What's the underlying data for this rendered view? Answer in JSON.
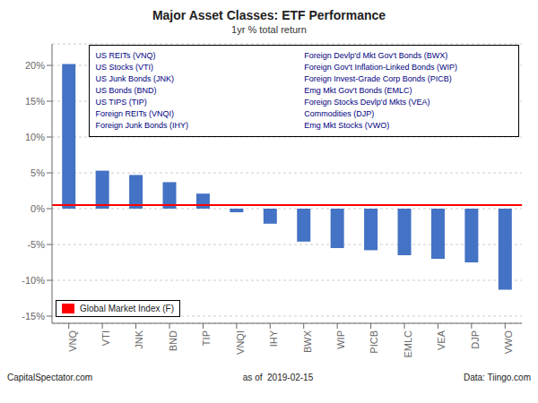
{
  "chart_data": {
    "type": "bar",
    "title": "Major Asset Classes: ETF Performance",
    "subtitle": "1yr % total return",
    "categories": [
      "VNQ",
      "VTI",
      "JNK",
      "BND",
      "TIP",
      "VNQI",
      "IHY",
      "BWX",
      "WIP",
      "PICB",
      "EMLC",
      "VEA",
      "DJP",
      "VWO"
    ],
    "values": [
      20.2,
      5.3,
      4.7,
      3.7,
      2.1,
      -0.5,
      -2.1,
      -4.6,
      -5.5,
      -5.8,
      -6.5,
      -7.0,
      -7.5,
      -11.3
    ],
    "color": "#4472C4",
    "ylim": [
      -16,
      23
    ],
    "yticks": [
      {
        "value": -15,
        "label": "-15%"
      },
      {
        "value": -10,
        "label": "-10%"
      },
      {
        "value": -5,
        "label": "-5%"
      },
      {
        "value": 0,
        "label": "0%"
      },
      {
        "value": 5,
        "label": "5%"
      },
      {
        "value": 10,
        "label": "10%"
      },
      {
        "value": 15,
        "label": "15%"
      },
      {
        "value": 20,
        "label": "20%"
      }
    ],
    "grid": true,
    "reference_line": {
      "name": "Global Market Index (F)",
      "value": 0.5,
      "color": "#FF0000"
    },
    "legend": "lower left",
    "annotations": [
      [
        "US REITs (VNQ)",
        "US Stocks (VTI)",
        "US Junk Bonds (JNK)",
        "US Bonds (BND)",
        "US TIPS (TIP)",
        "Foreign REITs (VNQI)",
        "Foreign Junk Bonds (IHY)"
      ],
      [
        "Foreign Devlp'd Mkt Gov't Bonds (BWX)",
        "Foreign Gov't Inflation-Linked Bonds (WIP)",
        "Foreign Invest-Grade Corp Bonds (PICB)",
        "Emg Mkt Gov't Bonds (EMLC)",
        "Foreign Stocks Devlp'd Mkts (VEA)",
        "Commodities (DJP)",
        "Emg Mkt Stocks (VWO)"
      ]
    ],
    "annotation_color": "#000080",
    "footer": [
      "CapitalSpectator.com",
      "as of  2019-02-15",
      "Data: Tiingo.com"
    ]
  }
}
